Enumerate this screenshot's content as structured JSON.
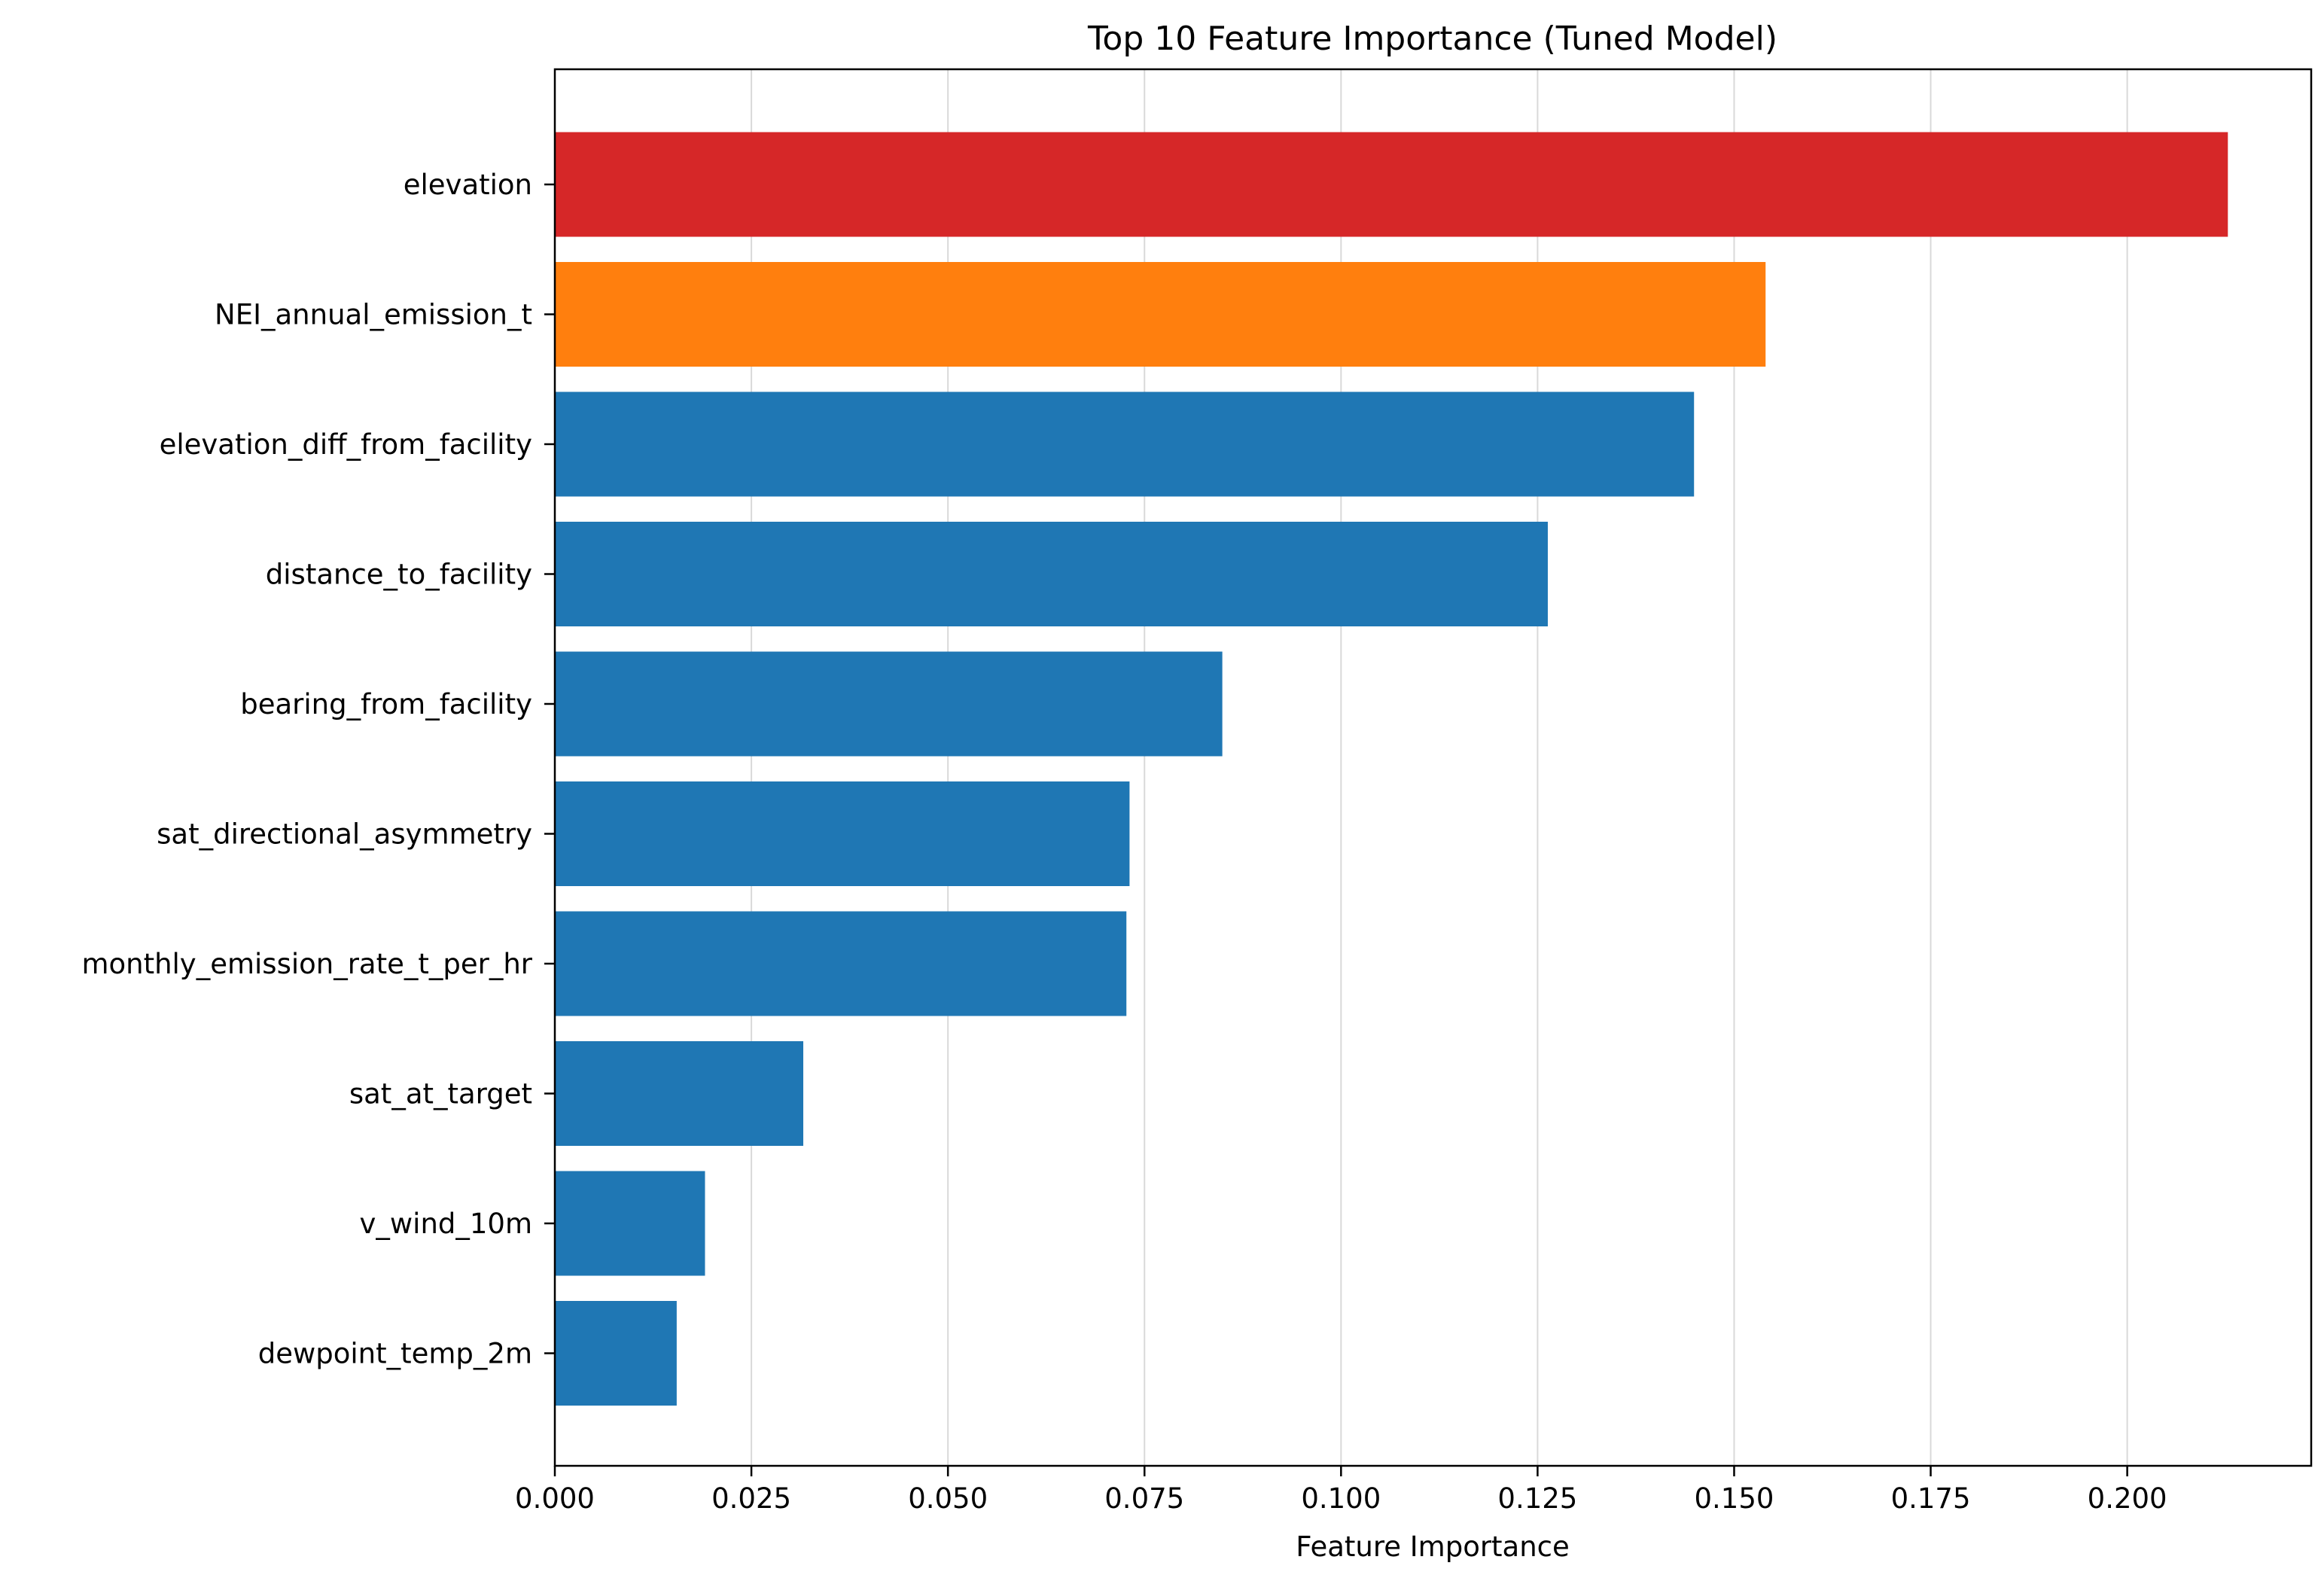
{
  "chart_data": {
    "type": "bar",
    "orientation": "horizontal",
    "title": "Top 10 Feature Importance (Tuned Model)",
    "xlabel": "Feature Importance",
    "ylabel": "",
    "categories": [
      "elevation",
      "NEI_annual_emission_t",
      "elevation_diff_from_facility",
      "distance_to_facility",
      "bearing_from_facility",
      "sat_directional_asymmetry",
      "monthly_emission_rate_t_per_hr",
      "sat_at_target",
      "v_wind_10m",
      "dewpoint_temp_2m"
    ],
    "values": [
      0.2128,
      0.154,
      0.1449,
      0.1263,
      0.0849,
      0.0731,
      0.0727,
      0.0316,
      0.0191,
      0.0155
    ],
    "bar_colors": [
      "#d62728",
      "#ff7f0e",
      "#1f77b4",
      "#1f77b4",
      "#1f77b4",
      "#1f77b4",
      "#1f77b4",
      "#1f77b4",
      "#1f77b4",
      "#1f77b4"
    ],
    "xlim": [
      0,
      0.2234
    ],
    "xticks": [
      0.0,
      0.025,
      0.05,
      0.075,
      0.1,
      0.125,
      0.15,
      0.175,
      0.2
    ],
    "xtick_labels": [
      "0.000",
      "0.025",
      "0.050",
      "0.075",
      "0.100",
      "0.125",
      "0.150",
      "0.175",
      "0.200"
    ],
    "grid": {
      "x": true,
      "y": false,
      "color": "#d9d9d9"
    }
  }
}
